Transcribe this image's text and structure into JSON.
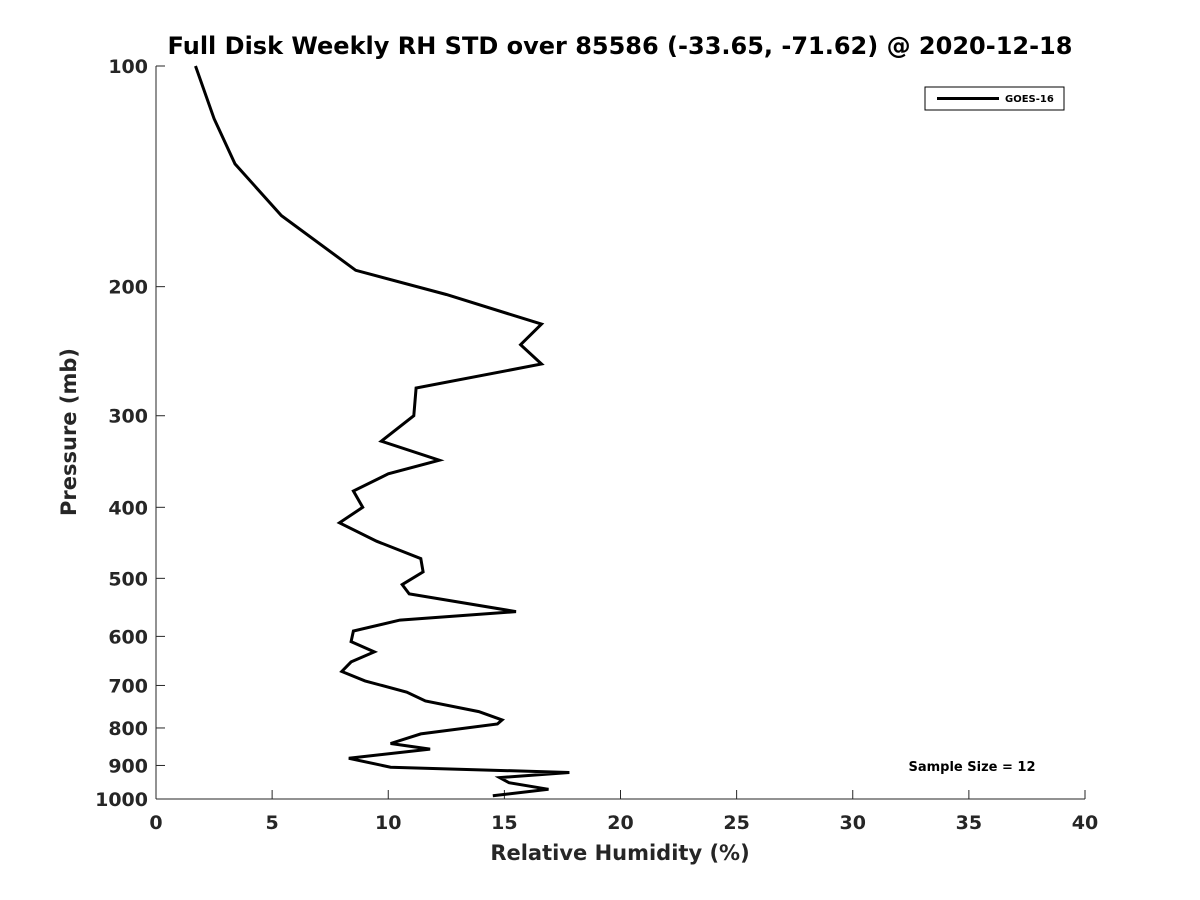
{
  "chart_data": {
    "type": "line",
    "title": "Full Disk Weekly RH STD over 85586 (-33.65, -71.62) @ 2020-12-18",
    "xlabel": "Relative Humidity (%)",
    "ylabel": "Pressure (mb)",
    "xlim": [
      0,
      40
    ],
    "ylim": [
      100,
      1000
    ],
    "y_scale": "log",
    "y_reversed": true,
    "x_ticks": [
      "0",
      "5",
      "10",
      "15",
      "20",
      "25",
      "30",
      "35",
      "40"
    ],
    "y_ticks": [
      "100",
      "200",
      "300",
      "400",
      "500",
      "600",
      "700",
      "800",
      "900",
      "1000"
    ],
    "grid": false,
    "legend_position": "top-right",
    "annotation": "Sample Size = 12",
    "series": [
      {
        "name": "GOES-16",
        "color": "#000000",
        "points": [
          [
            1.7,
            100
          ],
          [
            2.5,
            118
          ],
          [
            3.4,
            136
          ],
          [
            5.4,
            160
          ],
          [
            8.6,
            190
          ],
          [
            12.5,
            205
          ],
          [
            16.6,
            225
          ],
          [
            15.7,
            240
          ],
          [
            16.6,
            255
          ],
          [
            11.2,
            275
          ],
          [
            11.1,
            300
          ],
          [
            9.7,
            325
          ],
          [
            12.2,
            345
          ],
          [
            10.0,
            360
          ],
          [
            8.5,
            380
          ],
          [
            8.9,
            400
          ],
          [
            7.9,
            420
          ],
          [
            9.5,
            445
          ],
          [
            11.4,
            470
          ],
          [
            11.5,
            490
          ],
          [
            10.6,
            510
          ],
          [
            10.9,
            525
          ],
          [
            15.5,
            555
          ],
          [
            10.5,
            570
          ],
          [
            8.5,
            590
          ],
          [
            8.4,
            610
          ],
          [
            9.4,
            630
          ],
          [
            8.4,
            650
          ],
          [
            8.0,
            670
          ],
          [
            9.0,
            690
          ],
          [
            10.8,
            715
          ],
          [
            11.6,
            735
          ],
          [
            13.9,
            760
          ],
          [
            14.9,
            780
          ],
          [
            14.7,
            790
          ],
          [
            11.4,
            815
          ],
          [
            10.1,
            840
          ],
          [
            11.8,
            855
          ],
          [
            8.3,
            880
          ],
          [
            10.1,
            905
          ],
          [
            17.8,
            920
          ],
          [
            14.8,
            935
          ],
          [
            15.2,
            950
          ],
          [
            16.9,
            970
          ],
          [
            14.5,
            990
          ]
        ]
      }
    ]
  }
}
